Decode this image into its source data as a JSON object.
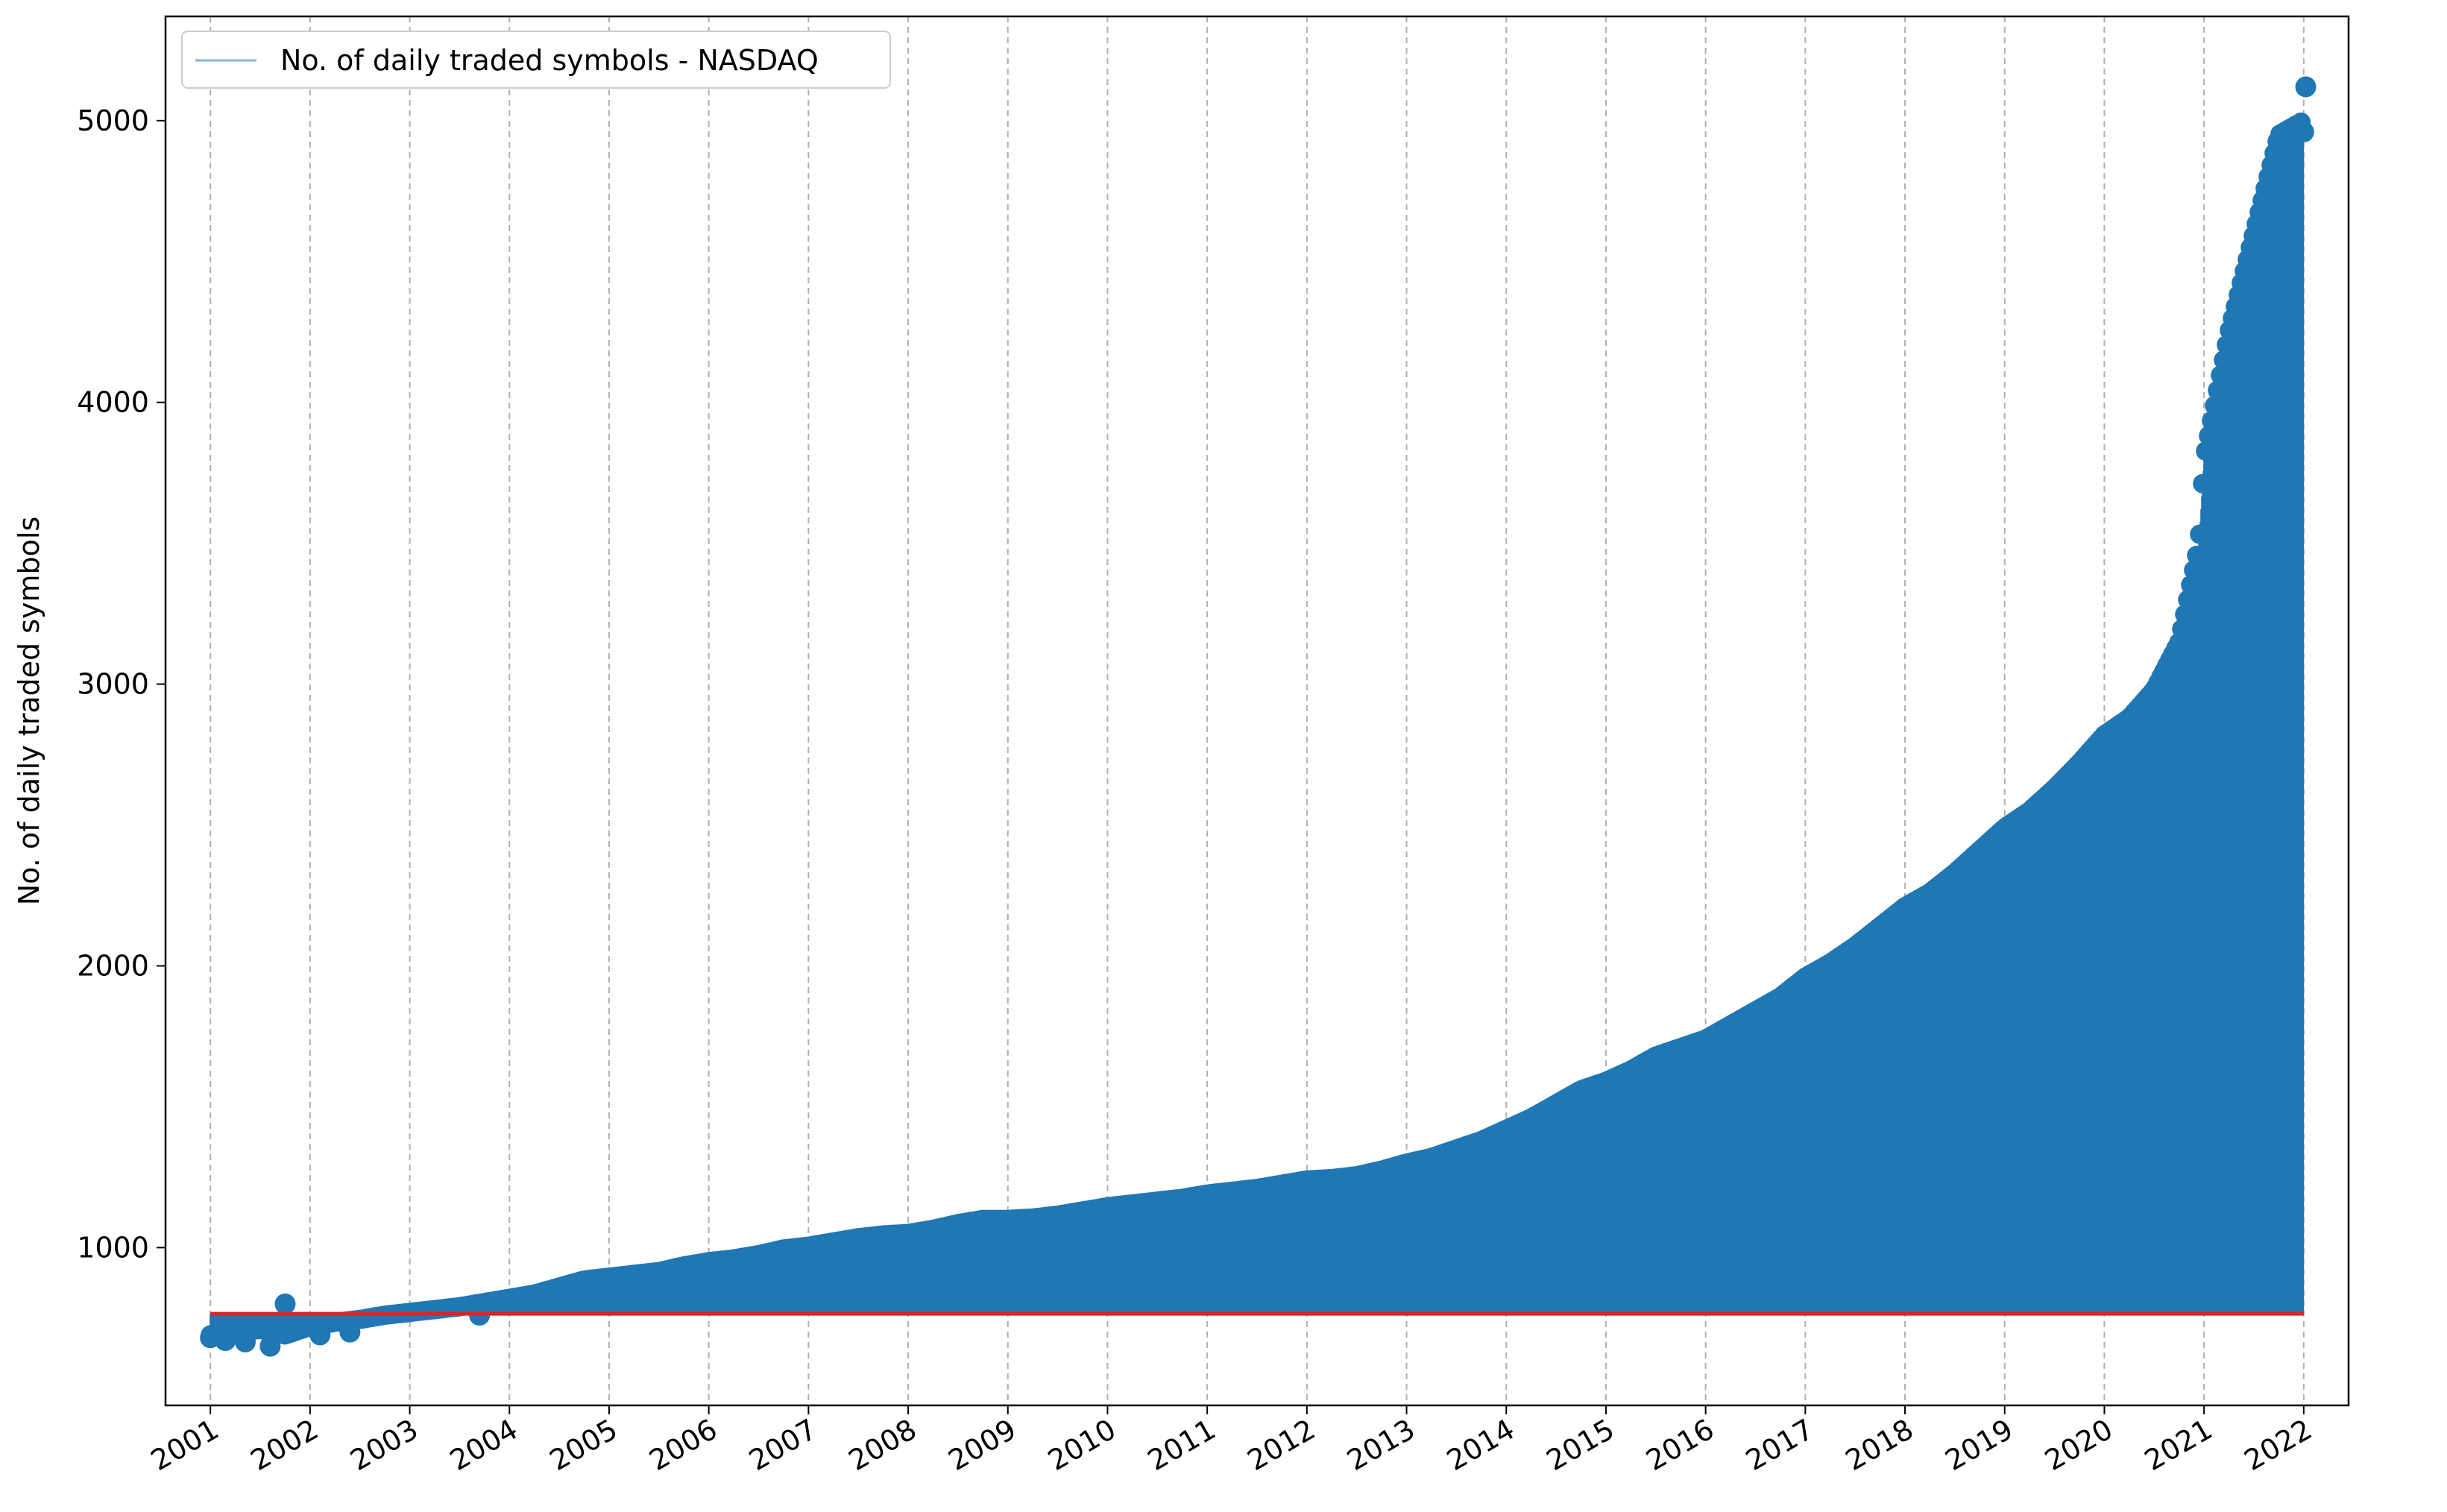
{
  "chart_data": {
    "type": "stem",
    "title": "",
    "xlabel": "",
    "ylabel": "No. of daily traded symbols",
    "x_ticks": [
      "2001",
      "2002",
      "2003",
      "2004",
      "2005",
      "2006",
      "2007",
      "2008",
      "2009",
      "2010",
      "2011",
      "2012",
      "2013",
      "2014",
      "2015",
      "2016",
      "2017",
      "2018",
      "2019",
      "2020",
      "2021",
      "2022"
    ],
    "y_ticks": [
      1000,
      2000,
      3000,
      4000,
      5000
    ],
    "xlim": [
      2000.55,
      2022.45
    ],
    "ylim": [
      440,
      5370
    ],
    "grid": "x-dashed",
    "legend": {
      "placement": "upper-left",
      "entries": [
        "No. of daily traded symbols - NASDAQ"
      ]
    },
    "baseline": 765,
    "series": [
      {
        "name": "No. of daily traded symbols - NASDAQ",
        "color": "#1f77b4",
        "points": [
          [
            2001.0,
            690
          ],
          [
            2001.25,
            700
          ],
          [
            2001.5,
            710
          ],
          [
            2001.75,
            690
          ],
          [
            2002.0,
            720
          ],
          [
            2002.25,
            735
          ],
          [
            2002.5,
            745
          ],
          [
            2002.75,
            760
          ],
          [
            2003.0,
            770
          ],
          [
            2003.25,
            780
          ],
          [
            2003.5,
            790
          ],
          [
            2003.75,
            805
          ],
          [
            2004.0,
            820
          ],
          [
            2004.25,
            835
          ],
          [
            2004.5,
            860
          ],
          [
            2004.75,
            885
          ],
          [
            2005.0,
            895
          ],
          [
            2005.25,
            905
          ],
          [
            2005.5,
            915
          ],
          [
            2005.75,
            935
          ],
          [
            2006.0,
            950
          ],
          [
            2006.25,
            960
          ],
          [
            2006.5,
            975
          ],
          [
            2006.75,
            995
          ],
          [
            2007.0,
            1005
          ],
          [
            2007.25,
            1020
          ],
          [
            2007.5,
            1035
          ],
          [
            2007.75,
            1045
          ],
          [
            2008.0,
            1050
          ],
          [
            2008.25,
            1065
          ],
          [
            2008.5,
            1085
          ],
          [
            2008.75,
            1100
          ],
          [
            2009.0,
            1100
          ],
          [
            2009.25,
            1105
          ],
          [
            2009.5,
            1115
          ],
          [
            2009.75,
            1130
          ],
          [
            2010.0,
            1145
          ],
          [
            2010.25,
            1155
          ],
          [
            2010.5,
            1165
          ],
          [
            2010.75,
            1175
          ],
          [
            2011.0,
            1190
          ],
          [
            2011.25,
            1200
          ],
          [
            2011.5,
            1210
          ],
          [
            2011.75,
            1225
          ],
          [
            2012.0,
            1240
          ],
          [
            2012.25,
            1245
          ],
          [
            2012.5,
            1255
          ],
          [
            2012.75,
            1275
          ],
          [
            2013.0,
            1300
          ],
          [
            2013.25,
            1320
          ],
          [
            2013.5,
            1350
          ],
          [
            2013.75,
            1380
          ],
          [
            2014.0,
            1420
          ],
          [
            2014.25,
            1460
          ],
          [
            2014.5,
            1510
          ],
          [
            2014.75,
            1560
          ],
          [
            2015.0,
            1590
          ],
          [
            2015.25,
            1630
          ],
          [
            2015.5,
            1680
          ],
          [
            2015.75,
            1710
          ],
          [
            2016.0,
            1740
          ],
          [
            2016.25,
            1790
          ],
          [
            2016.5,
            1840
          ],
          [
            2016.75,
            1890
          ],
          [
            2017.0,
            1960
          ],
          [
            2017.25,
            2010
          ],
          [
            2017.5,
            2070
          ],
          [
            2017.75,
            2140
          ],
          [
            2018.0,
            2210
          ],
          [
            2018.25,
            2260
          ],
          [
            2018.5,
            2330
          ],
          [
            2018.75,
            2410
          ],
          [
            2019.0,
            2490
          ],
          [
            2019.25,
            2550
          ],
          [
            2019.5,
            2630
          ],
          [
            2019.75,
            2720
          ],
          [
            2020.0,
            2820
          ],
          [
            2020.25,
            2880
          ],
          [
            2020.5,
            2980
          ],
          [
            2020.75,
            3150
          ],
          [
            2020.95,
            3500
          ],
          [
            2021.0,
            3800
          ],
          [
            2021.25,
            4250
          ],
          [
            2021.5,
            4600
          ],
          [
            2021.75,
            4950
          ],
          [
            2022.0,
            5000
          ]
        ],
        "outliers": [
          [
            2001.0,
            680
          ],
          [
            2001.15,
            670
          ],
          [
            2001.35,
            665
          ],
          [
            2001.6,
            650
          ],
          [
            2001.75,
            800
          ],
          [
            2002.1,
            690
          ],
          [
            2002.4,
            700
          ],
          [
            2003.7,
            760
          ],
          [
            2021.9,
            4850
          ],
          [
            2022.0,
            4960
          ],
          [
            2022.02,
            5120
          ]
        ]
      }
    ],
    "reference_line": {
      "y": 765,
      "color": "#d62728"
    }
  }
}
